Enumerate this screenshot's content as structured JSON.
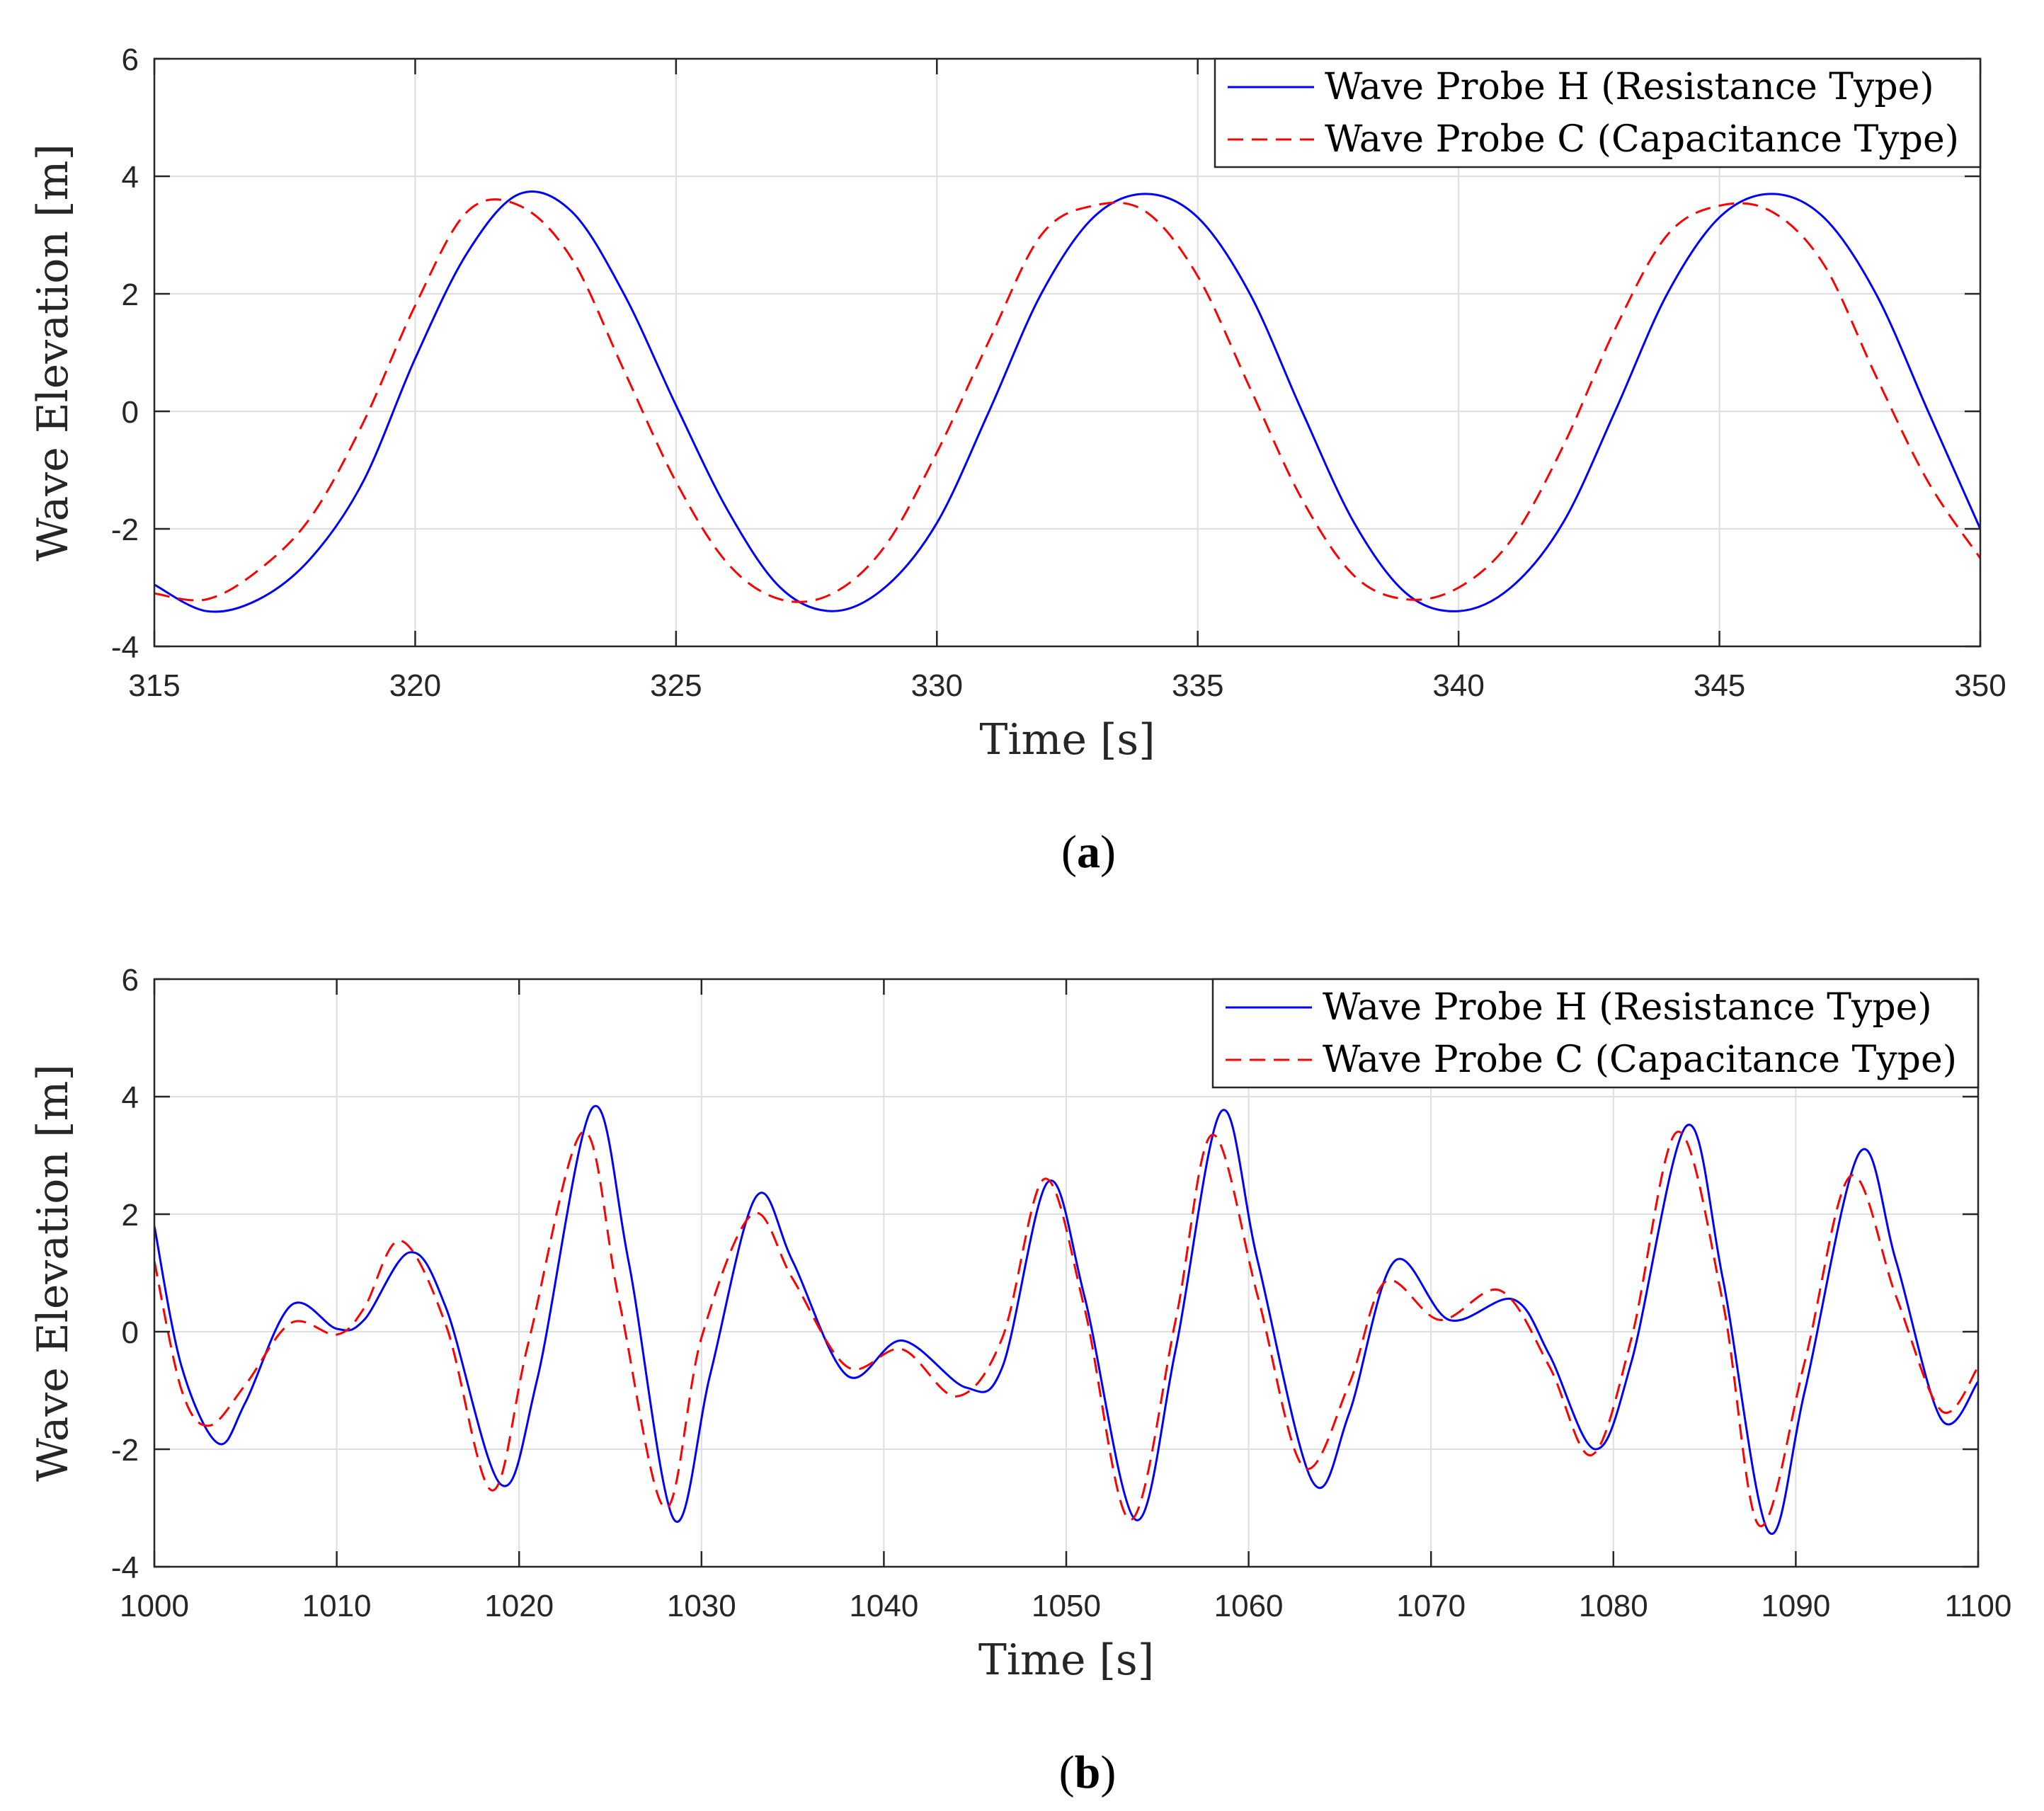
{
  "chart_data": [
    {
      "type": "line",
      "panel_label": {
        "open": "(",
        "letter": "a",
        "close": ")"
      },
      "xlabel": "Time [s]",
      "ylabel": "Wave Elevation [m]",
      "xlim": [
        315,
        350
      ],
      "ylim": [
        -4,
        6
      ],
      "xticks": [
        315,
        320,
        325,
        330,
        335,
        340,
        345,
        350
      ],
      "yticks": [
        -4,
        -2,
        0,
        2,
        4,
        6
      ],
      "grid": true,
      "legend_position": "top-right",
      "series": [
        {
          "name": "Wave Probe H (Resistance Type)",
          "color": "#0000ff",
          "dash": "solid",
          "x": [
            315,
            316,
            317,
            318,
            319,
            320,
            321,
            322,
            323,
            324,
            325,
            326,
            327,
            328,
            329,
            330,
            331,
            332,
            333,
            334,
            335,
            336,
            337,
            338,
            339,
            340,
            341,
            342,
            343,
            344,
            345,
            346,
            347,
            348,
            349,
            350
          ],
          "y": [
            -2.95,
            -3.4,
            -3.2,
            -2.5,
            -1.2,
            0.9,
            2.7,
            3.7,
            3.4,
            2.0,
            0.1,
            -1.7,
            -3.0,
            -3.4,
            -3.0,
            -1.9,
            0.0,
            2.0,
            3.3,
            3.7,
            3.3,
            2.0,
            0.0,
            -1.9,
            -3.1,
            -3.4,
            -3.0,
            -1.9,
            0.0,
            2.0,
            3.3,
            3.7,
            3.3,
            2.0,
            0.0,
            -2.0
          ]
        },
        {
          "name": "Wave Probe C (Capacitance Type)",
          "color": "#ff0000",
          "dash": "dashed",
          "x": [
            315,
            316,
            317,
            318,
            319,
            320,
            321,
            322,
            323,
            324,
            325,
            326,
            327,
            328,
            329,
            330,
            331,
            332,
            333,
            334,
            335,
            336,
            337,
            338,
            339,
            340,
            341,
            342,
            343,
            344,
            345,
            346,
            347,
            348,
            349,
            350
          ],
          "y": [
            -3.1,
            -3.2,
            -2.7,
            -1.8,
            -0.2,
            1.8,
            3.4,
            3.5,
            2.6,
            0.7,
            -1.2,
            -2.6,
            -3.2,
            -3.1,
            -2.3,
            -0.7,
            1.2,
            3.0,
            3.5,
            3.4,
            2.3,
            0.4,
            -1.5,
            -2.8,
            -3.2,
            -3.0,
            -2.2,
            -0.6,
            1.4,
            3.0,
            3.5,
            3.4,
            2.5,
            0.6,
            -1.2,
            -2.5
          ]
        }
      ]
    },
    {
      "type": "line",
      "panel_label": {
        "open": "(",
        "letter": "b",
        "close": ")"
      },
      "xlabel": "Time [s]",
      "ylabel": "Wave Elevation [m]",
      "xlim": [
        1000,
        1100
      ],
      "ylim": [
        -4,
        6
      ],
      "xticks": [
        1000,
        1010,
        1020,
        1030,
        1040,
        1050,
        1060,
        1070,
        1080,
        1090,
        1100
      ],
      "yticks": [
        -4,
        -2,
        0,
        2,
        4,
        6
      ],
      "grid": true,
      "legend_position": "top-right",
      "series": [
        {
          "name": "Wave Probe H (Resistance Type)",
          "color": "#0000ff",
          "dash": "solid",
          "x": [
            1000,
            1001.5,
            1003.5,
            1005,
            1007.5,
            1010,
            1011.5,
            1014,
            1016,
            1019,
            1021,
            1024,
            1026,
            1028.5,
            1030.5,
            1033,
            1035,
            1038,
            1041,
            1044.5,
            1046.5,
            1049,
            1051,
            1053.8,
            1056,
            1058.5,
            1060.5,
            1063.5,
            1065.5,
            1068,
            1071,
            1074.5,
            1076.5,
            1079,
            1081,
            1084,
            1086,
            1088.5,
            1090.5,
            1093.5,
            1095.5,
            1098,
            1100
          ],
          "y": [
            1.8,
            -0.6,
            -1.9,
            -1.2,
            0.45,
            0.05,
            0.2,
            1.35,
            0.4,
            -2.6,
            -0.8,
            3.8,
            1.2,
            -3.2,
            -0.7,
            2.3,
            1.2,
            -0.75,
            -0.15,
            -0.95,
            -0.6,
            2.55,
            0.6,
            -3.2,
            -0.3,
            3.75,
            1.2,
            -2.55,
            -1.4,
            1.2,
            0.2,
            0.55,
            -0.4,
            -2.0,
            -0.5,
            3.5,
            0.9,
            -3.4,
            -1.0,
            3.05,
            1.2,
            -1.5,
            -0.85
          ]
        },
        {
          "name": "Wave Probe C (Capacitance Type)",
          "color": "#ff0000",
          "dash": "dashed",
          "x": [
            1000,
            1001.5,
            1003,
            1005,
            1007.5,
            1010,
            1011.5,
            1013.5,
            1016,
            1018.5,
            1020.5,
            1023.5,
            1025.5,
            1028,
            1030,
            1032.8,
            1035,
            1038,
            1041,
            1044,
            1046.5,
            1048.8,
            1051,
            1053.5,
            1056,
            1058,
            1060.5,
            1063,
            1065.5,
            1067.5,
            1070.5,
            1073.8,
            1076.5,
            1078.8,
            1081,
            1083.5,
            1086,
            1088,
            1090.5,
            1093,
            1095.5,
            1098,
            1100
          ],
          "y": [
            1.2,
            -1.0,
            -1.6,
            -0.9,
            0.15,
            -0.05,
            0.4,
            1.55,
            0.1,
            -2.7,
            -0.2,
            3.4,
            0.5,
            -3.0,
            -0.1,
            2.0,
            0.9,
            -0.6,
            -0.3,
            -1.1,
            -0.1,
            2.6,
            0.4,
            -3.2,
            0.2,
            3.35,
            0.6,
            -2.3,
            -0.9,
            0.85,
            0.2,
            0.7,
            -0.6,
            -2.1,
            -0.1,
            3.4,
            0.5,
            -3.3,
            -0.5,
            2.65,
            0.6,
            -1.35,
            -0.6
          ]
        }
      ]
    }
  ]
}
